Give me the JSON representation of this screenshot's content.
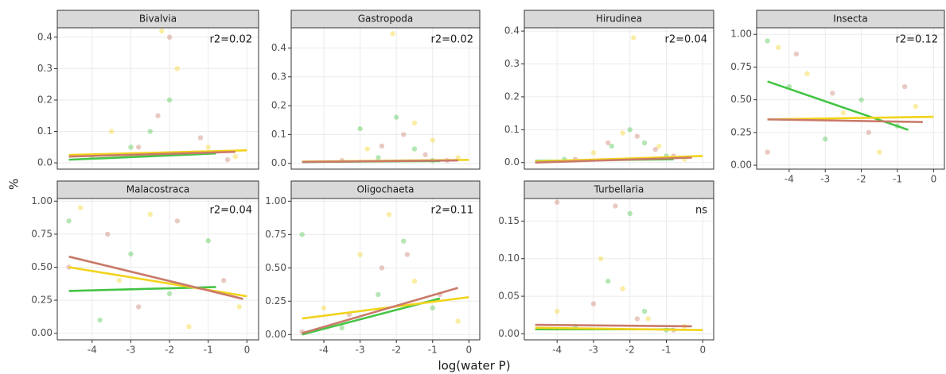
{
  "xlabel": "log(water P)",
  "ylabel": "%",
  "chart_data": [
    {
      "type": "scatter",
      "title": "Bivalvia",
      "annotation": "r2=0.02",
      "xlim": [
        -4.9,
        0.3
      ],
      "xticks": [
        -4,
        -3,
        -2,
        -1,
        0
      ],
      "show_xtick_labels": false,
      "ylim": [
        -0.02,
        0.43
      ],
      "yticks": [
        {
          "value": 0,
          "label": "0.0"
        },
        0.1,
        0.2,
        0.3,
        0.4
      ],
      "grid": true,
      "series": [
        {
          "color": "#44c444",
          "x": [
            -4,
            -3,
            -2.5,
            -2,
            -1.5
          ],
          "values": [
            0.02,
            0.05,
            0.1,
            0.2,
            0.03
          ]
        },
        {
          "color": "#f2d31b",
          "x": [
            -3.5,
            -2.2,
            -1.8,
            -1,
            -0.3
          ],
          "values": [
            0.1,
            0.42,
            0.3,
            0.05,
            0.02
          ]
        },
        {
          "color": "#c97a6a",
          "x": [
            -2.8,
            -2.3,
            -2,
            -1.2,
            -0.5
          ],
          "values": [
            0.05,
            0.15,
            0.4,
            0.08,
            0.01
          ]
        }
      ],
      "fits": [
        {
          "color": "#44c444",
          "x": [
            -4.6,
            -0.8
          ],
          "values": [
            0.01,
            0.03
          ]
        },
        {
          "color": "#f2d31b",
          "x": [
            -4.6,
            0
          ],
          "values": [
            0.025,
            0.04
          ]
        },
        {
          "color": "#c97a6a",
          "x": [
            -4.6,
            -0.3
          ],
          "values": [
            0.02,
            0.035
          ]
        }
      ]
    },
    {
      "type": "scatter",
      "title": "Gastropoda",
      "annotation": "r2=0.02",
      "xlim": [
        -4.9,
        0.3
      ],
      "xticks": [
        -4,
        -3,
        -2,
        -1,
        0
      ],
      "show_xtick_labels": false,
      "ylim": [
        -0.02,
        0.47
      ],
      "yticks": [
        {
          "value": 0,
          "label": "0.0"
        },
        0.1,
        0.2,
        0.3,
        0.4
      ],
      "grid": true,
      "series": [
        {
          "color": "#44c444",
          "x": [
            -3,
            -2.5,
            -2,
            -1.5,
            -1
          ],
          "values": [
            0.12,
            0.02,
            0.16,
            0.05,
            0.01
          ]
        },
        {
          "color": "#f2d31b",
          "x": [
            -2.8,
            -2.1,
            -1.5,
            -1,
            -0.3
          ],
          "values": [
            0.05,
            0.45,
            0.14,
            0.08,
            0.02
          ]
        },
        {
          "color": "#c97a6a",
          "x": [
            -3.5,
            -2.4,
            -1.8,
            -1.2,
            -0.6
          ],
          "values": [
            0.01,
            0.06,
            0.1,
            0.03,
            0.01
          ]
        }
      ],
      "fits": [
        {
          "color": "#44c444",
          "x": [
            -4.6,
            -0.8
          ],
          "values": [
            0.005,
            0.008
          ]
        },
        {
          "color": "#f2d31b",
          "x": [
            -4.6,
            0
          ],
          "values": [
            0.006,
            0.012
          ]
        },
        {
          "color": "#c97a6a",
          "x": [
            -4.6,
            -0.3
          ],
          "values": [
            0.005,
            0.01
          ]
        }
      ]
    },
    {
      "type": "scatter",
      "title": "Hirudinea",
      "annotation": "r2=0.04",
      "xlim": [
        -4.9,
        0.3
      ],
      "xticks": [
        -4,
        -3,
        -2,
        -1,
        0
      ],
      "show_xtick_labels": false,
      "ylim": [
        -0.02,
        0.41
      ],
      "yticks": [
        {
          "value": 0,
          "label": "0.0"
        },
        0.1,
        0.2,
        0.3,
        0.4
      ],
      "grid": true,
      "series": [
        {
          "color": "#44c444",
          "x": [
            -3.8,
            -2.5,
            -2,
            -1.6,
            -1
          ],
          "values": [
            0.01,
            0.05,
            0.1,
            0.06,
            0.02
          ]
        },
        {
          "color": "#f2d31b",
          "x": [
            -3,
            -2.2,
            -1.9,
            -1.2,
            -0.5
          ],
          "values": [
            0.03,
            0.09,
            0.38,
            0.05,
            0.01
          ]
        },
        {
          "color": "#c97a6a",
          "x": [
            -3.5,
            -2.6,
            -1.8,
            -1.3,
            -0.8
          ],
          "values": [
            0.01,
            0.06,
            0.08,
            0.04,
            0.02
          ]
        }
      ],
      "fits": [
        {
          "color": "#44c444",
          "x": [
            -4.6,
            -0.8
          ],
          "values": [
            0.005,
            0.01
          ]
        },
        {
          "color": "#f2d31b",
          "x": [
            -4.6,
            0
          ],
          "values": [
            0.003,
            0.02
          ]
        },
        {
          "color": "#c97a6a",
          "x": [
            -4.6,
            -0.3
          ],
          "values": [
            0,
            0.015
          ]
        }
      ]
    },
    {
      "type": "scatter",
      "title": "Insecta",
      "annotation": "r2=0.12",
      "xlim": [
        -4.9,
        0.3
      ],
      "xticks": [
        -4,
        -3,
        -2,
        -1,
        0
      ],
      "show_xtick_labels": true,
      "ylim": [
        -0.03,
        1.05
      ],
      "yticks": [
        {
          "value": 0,
          "label": "0.00"
        },
        0.25,
        {
          "value": 0.5,
          "label": "0.50"
        },
        0.75,
        {
          "value": 1,
          "label": "1.00"
        }
      ],
      "grid": true,
      "series": [
        {
          "color": "#44c444",
          "x": [
            -4.6,
            -4,
            -3,
            -2,
            -1
          ],
          "values": [
            0.95,
            0.6,
            0.2,
            0.5,
            0.3
          ]
        },
        {
          "color": "#f2d31b",
          "x": [
            -4.3,
            -3.5,
            -2.5,
            -1.5,
            -0.5
          ],
          "values": [
            0.9,
            0.7,
            0.4,
            0.1,
            0.45
          ]
        },
        {
          "color": "#c97a6a",
          "x": [
            -4.6,
            -3.8,
            -2.8,
            -1.8,
            -0.8
          ],
          "values": [
            0.1,
            0.85,
            0.55,
            0.25,
            0.6
          ]
        }
      ],
      "fits": [
        {
          "color": "#44c444",
          "x": [
            -4.6,
            -0.7
          ],
          "values": [
            0.64,
            0.27
          ]
        },
        {
          "color": "#f2d31b",
          "x": [
            -4.6,
            0
          ],
          "values": [
            0.35,
            0.37
          ]
        },
        {
          "color": "#c97a6a",
          "x": [
            -4.6,
            -0.3
          ],
          "values": [
            0.35,
            0.33
          ]
        }
      ]
    },
    {
      "type": "scatter",
      "title": "Malacostraca",
      "annotation": "r2=0.04",
      "xlim": [
        -4.9,
        0.3
      ],
      "xticks": [
        -4,
        -3,
        -2,
        -1,
        0
      ],
      "show_xtick_labels": true,
      "ylim": [
        -0.05,
        1.02
      ],
      "yticks": [
        {
          "value": 0,
          "label": "0.00"
        },
        0.25,
        {
          "value": 0.5,
          "label": "0.50"
        },
        0.75,
        {
          "value": 1,
          "label": "1.00"
        }
      ],
      "grid": true,
      "series": [
        {
          "color": "#44c444",
          "x": [
            -4.6,
            -3.8,
            -3,
            -2,
            -1
          ],
          "values": [
            0.85,
            0.1,
            0.6,
            0.3,
            0.7
          ]
        },
        {
          "color": "#f2d31b",
          "x": [
            -4.3,
            -3.3,
            -2.5,
            -1.5,
            -0.2
          ],
          "values": [
            0.95,
            0.4,
            0.9,
            0.05,
            0.2
          ]
        },
        {
          "color": "#c97a6a",
          "x": [
            -4.6,
            -3.6,
            -2.8,
            -1.8,
            -0.6
          ],
          "values": [
            0.5,
            0.75,
            0.2,
            0.85,
            0.4
          ]
        }
      ],
      "fits": [
        {
          "color": "#44c444",
          "x": [
            -4.6,
            -0.8
          ],
          "values": [
            0.32,
            0.35
          ]
        },
        {
          "color": "#f2d31b",
          "x": [
            -4.6,
            0
          ],
          "values": [
            0.5,
            0.28
          ]
        },
        {
          "color": "#c97a6a",
          "x": [
            -4.6,
            -0.1
          ],
          "values": [
            0.58,
            0.26
          ]
        }
      ]
    },
    {
      "type": "scatter",
      "title": "Oligochaeta",
      "annotation": "r2=0.11",
      "xlim": [
        -4.9,
        0.3
      ],
      "xticks": [
        -4,
        -3,
        -2,
        -1,
        0
      ],
      "show_xtick_labels": true,
      "ylim": [
        -0.04,
        1.02
      ],
      "yticks": [
        {
          "value": 0,
          "label": "0.00"
        },
        0.25,
        {
          "value": 0.5,
          "label": "0.50"
        },
        0.75,
        {
          "value": 1,
          "label": "1.00"
        }
      ],
      "grid": true,
      "series": [
        {
          "color": "#44c444",
          "x": [
            -4.6,
            -3.5,
            -2.5,
            -1.8,
            -1
          ],
          "values": [
            0.75,
            0.05,
            0.3,
            0.7,
            0.2
          ]
        },
        {
          "color": "#f2d31b",
          "x": [
            -4,
            -3,
            -2.2,
            -1.5,
            -0.3
          ],
          "values": [
            0.2,
            0.6,
            0.9,
            0.4,
            0.1
          ]
        },
        {
          "color": "#c97a6a",
          "x": [
            -4.6,
            -3.3,
            -2.4,
            -1.7,
            -0.8
          ],
          "values": [
            0.02,
            0.15,
            0.5,
            0.6,
            0.3
          ]
        }
      ],
      "fits": [
        {
          "color": "#44c444",
          "x": [
            -4.6,
            -0.8
          ],
          "values": [
            0,
            0.27
          ]
        },
        {
          "color": "#f2d31b",
          "x": [
            -4.6,
            0
          ],
          "values": [
            0.12,
            0.28
          ]
        },
        {
          "color": "#c97a6a",
          "x": [
            -4.6,
            -0.3
          ],
          "values": [
            0.01,
            0.35
          ]
        }
      ]
    },
    {
      "type": "scatter",
      "title": "Turbellaria",
      "annotation": "ns",
      "xlim": [
        -4.9,
        0.3
      ],
      "xticks": [
        -4,
        -3,
        -2,
        -1,
        0
      ],
      "show_xtick_labels": true,
      "ylim": [
        -0.008,
        0.18
      ],
      "yticks": [
        {
          "value": 0,
          "label": "0.00"
        },
        0.05,
        {
          "value": 0.1,
          "label": "0.10"
        },
        0.15
      ],
      "grid": true,
      "series": [
        {
          "color": "#44c444",
          "x": [
            -3.5,
            -2.6,
            -2,
            -1.6,
            -1
          ],
          "values": [
            0.01,
            0.07,
            0.16,
            0.03,
            0.005
          ]
        },
        {
          "color": "#f2d31b",
          "x": [
            -4,
            -2.8,
            -2.2,
            -1.5,
            -0.5
          ],
          "values": [
            0.03,
            0.1,
            0.06,
            0.02,
            0.01
          ]
        },
        {
          "color": "#c97a6a",
          "x": [
            -4,
            -3,
            -2.4,
            -1.8,
            -0.8
          ],
          "values": [
            0.175,
            0.04,
            0.17,
            0.02,
            0.005
          ]
        }
      ],
      "fits": [
        {
          "color": "#44c444",
          "x": [
            -4.6,
            -0.8
          ],
          "values": [
            0.006,
            0.006
          ]
        },
        {
          "color": "#f2d31b",
          "x": [
            -4.6,
            0
          ],
          "values": [
            0.008,
            0.005
          ]
        },
        {
          "color": "#c97a6a",
          "x": [
            -4.6,
            -0.3
          ],
          "values": [
            0.012,
            0.01
          ]
        }
      ]
    }
  ]
}
